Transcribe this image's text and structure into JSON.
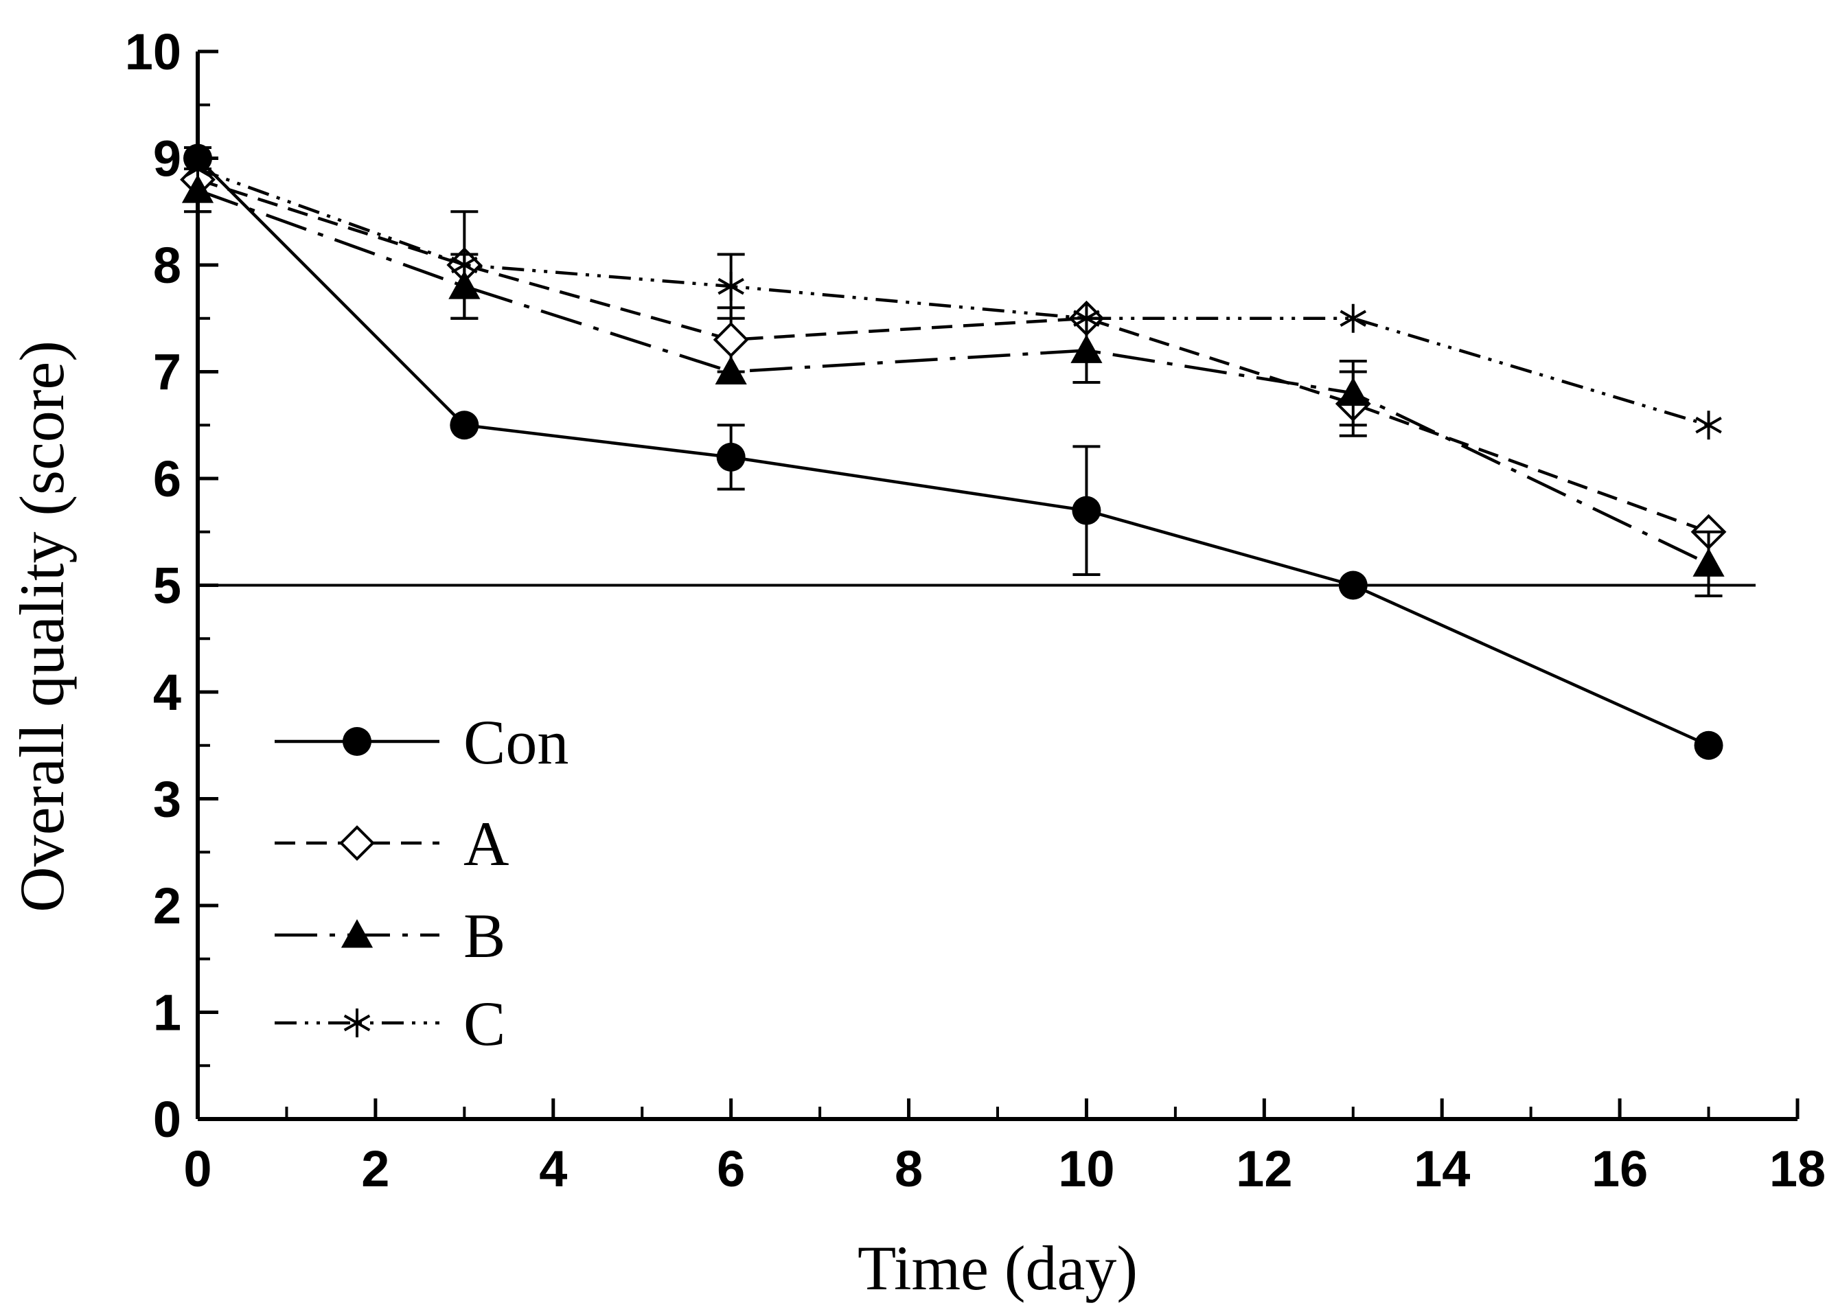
{
  "chart_data": {
    "type": "line",
    "title": "",
    "xlabel": "Time (day)",
    "ylabel": "Overall quality (score)",
    "xlim": [
      0,
      18
    ],
    "ylim": [
      0,
      10
    ],
    "xticks": [
      0,
      2,
      4,
      6,
      8,
      10,
      12,
      14,
      16,
      18
    ],
    "yticks": [
      0,
      1,
      2,
      3,
      4,
      5,
      6,
      7,
      8,
      9,
      10
    ],
    "reference_line": {
      "y": 5
    },
    "legend_position": "lower-left",
    "series": [
      {
        "name": "Con",
        "marker": "filled-circle",
        "line": "solid",
        "x": [
          0,
          3,
          6,
          10,
          13,
          17
        ],
        "y": [
          9.0,
          6.5,
          6.2,
          5.7,
          5.0,
          3.5
        ],
        "err": [
          0.1,
          0,
          0.3,
          0.6,
          0,
          0
        ]
      },
      {
        "name": "A",
        "marker": "open-diamond",
        "line": "dashed",
        "x": [
          0,
          3,
          6,
          10,
          13,
          17
        ],
        "y": [
          8.8,
          8.0,
          7.3,
          7.5,
          6.7,
          5.5
        ],
        "err": [
          0.2,
          0.5,
          0.3,
          0,
          0.3,
          0
        ]
      },
      {
        "name": "B",
        "marker": "filled-triangle",
        "line": "long-dash-dot",
        "x": [
          0,
          3,
          6,
          10,
          13,
          17
        ],
        "y": [
          8.7,
          7.8,
          7.0,
          7.2,
          6.8,
          5.2
        ],
        "err": [
          0.2,
          0.3,
          0,
          0.3,
          0.3,
          0.3
        ]
      },
      {
        "name": "C",
        "marker": "asterisk",
        "line": "dash-dot-dot",
        "x": [
          0,
          3,
          6,
          10,
          13,
          17
        ],
        "y": [
          8.9,
          8.0,
          7.8,
          7.5,
          7.5,
          6.5
        ],
        "err": [
          0,
          0,
          0.3,
          0,
          0,
          0
        ]
      }
    ]
  }
}
